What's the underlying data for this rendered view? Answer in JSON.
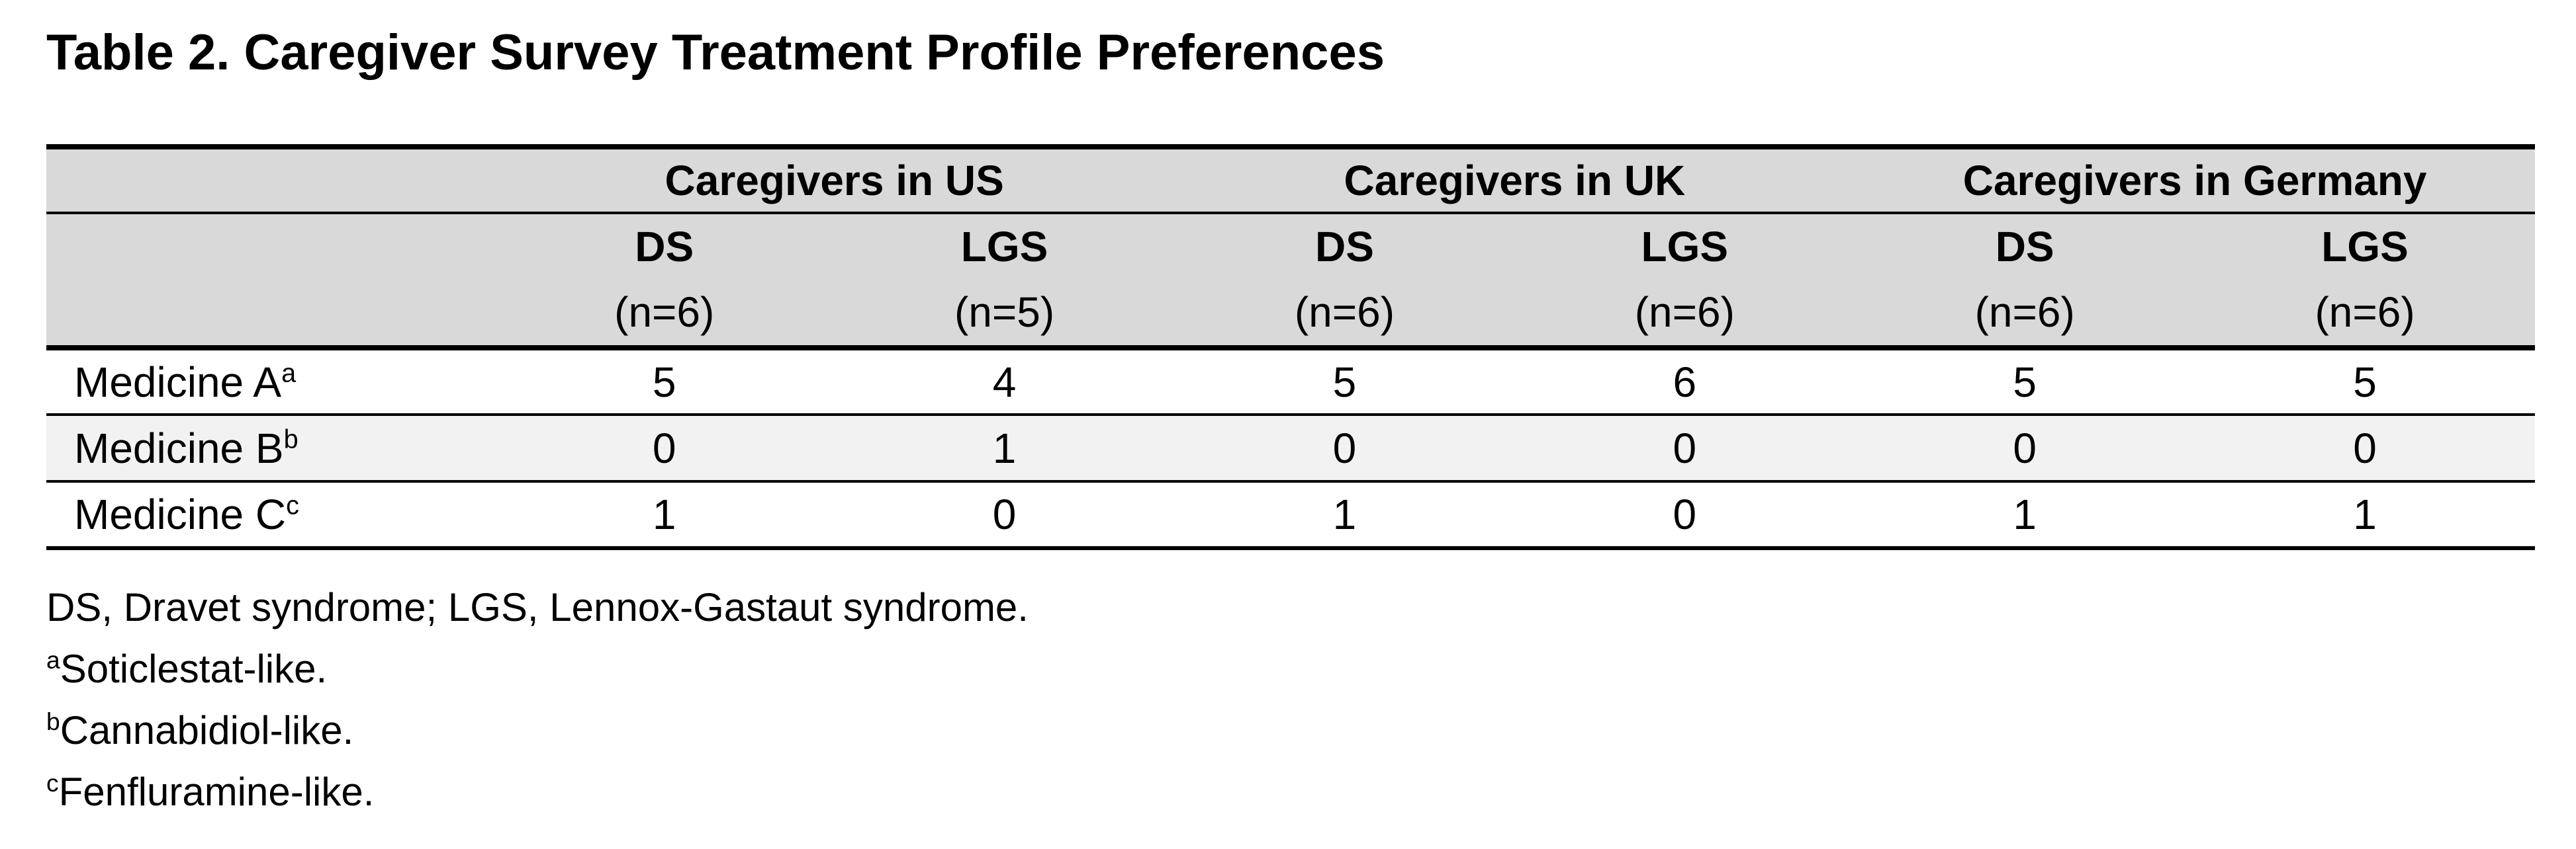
{
  "title": "Table 2. Caregiver Survey Treatment Profile Preferences",
  "table": {
    "groups": [
      {
        "label": "Caregivers in US"
      },
      {
        "label": "Caregivers in UK"
      },
      {
        "label": "Caregivers in Germany"
      }
    ],
    "columns": [
      {
        "abbr": "DS",
        "n": "(n=6)"
      },
      {
        "abbr": "LGS",
        "n": "(n=5)"
      },
      {
        "abbr": "DS",
        "n": "(n=6)"
      },
      {
        "abbr": "LGS",
        "n": "(n=6)"
      },
      {
        "abbr": "DS",
        "n": "(n=6)"
      },
      {
        "abbr": "LGS",
        "n": "(n=6)"
      }
    ],
    "rows": [
      {
        "label": "Medicine A",
        "sup": "a",
        "values": [
          5,
          4,
          5,
          6,
          5,
          5
        ]
      },
      {
        "label": "Medicine B",
        "sup": "b",
        "values": [
          0,
          1,
          0,
          0,
          0,
          0
        ]
      },
      {
        "label": "Medicine C",
        "sup": "c",
        "values": [
          1,
          0,
          1,
          0,
          1,
          1
        ]
      }
    ]
  },
  "footnotes": [
    {
      "sup": "",
      "text": "DS, Dravet syndrome; LGS, Lennox-Gastaut syndrome."
    },
    {
      "sup": "a",
      "text": "Soticlestat-like."
    },
    {
      "sup": "b",
      "text": "Cannabidiol-like."
    },
    {
      "sup": "c",
      "text": "Fenfluramine-like."
    }
  ],
  "colors": {
    "header_bg": "#d9d9d9",
    "stripe_bg": "#f2f2f2",
    "border": "#000000",
    "text": "#000000",
    "page_bg": "#ffffff"
  }
}
